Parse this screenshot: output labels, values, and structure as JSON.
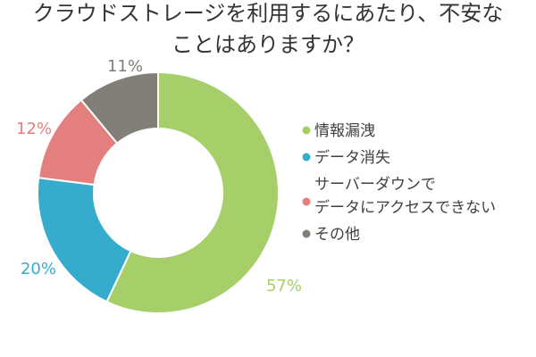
{
  "chart_data": {
    "type": "pie",
    "title": "クラウドストレージを利用するにあたり、不安なことはありますか？",
    "title_lines": [
      "クラウドストレージを利用するにあたり、不安な",
      "ことはありますか？"
    ],
    "categories": [
      "情報漏洩",
      "データ消失",
      "サーバーダウンでデータにアクセスできない",
      "その他"
    ],
    "values": [
      57,
      20,
      12,
      11
    ],
    "value_labels": [
      "57%",
      "20%",
      "12%",
      "11%"
    ],
    "legend": {
      "placement": "right",
      "entries": [
        {
          "label_lines": [
            "情報漏洩"
          ]
        },
        {
          "label_lines": [
            "データ消失"
          ]
        },
        {
          "label_lines": [
            "サーバーダウンで",
            "データにアクセスできない"
          ]
        },
        {
          "label_lines": [
            "その他"
          ]
        }
      ]
    },
    "colors": [
      "#a6cf6a",
      "#36accd",
      "#e47f7f",
      "#827e78"
    ],
    "style": "donut"
  }
}
